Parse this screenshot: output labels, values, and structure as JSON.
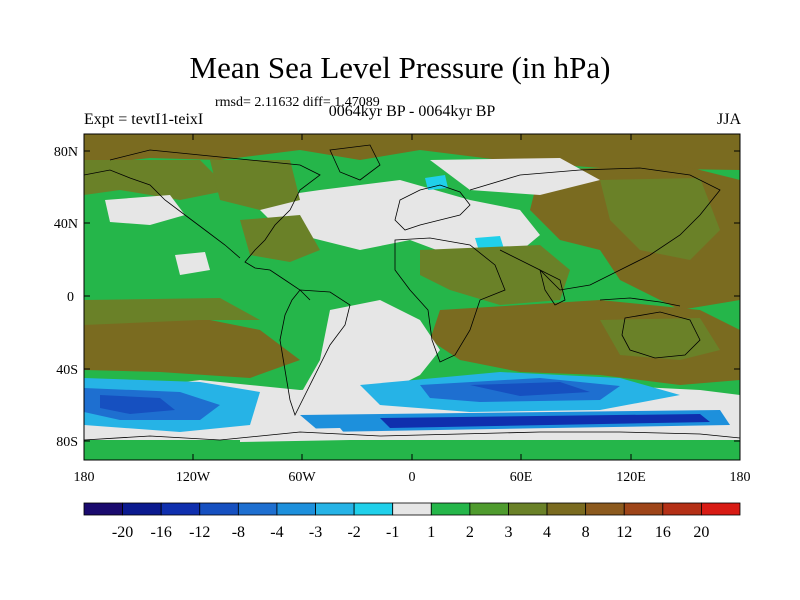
{
  "title": "Mean Sea Level Pressure (in hPa)",
  "stats": "rmsd= 2.11632 diff= 1.47089",
  "experiment": "Expt = tevtI1-teixI",
  "period": "0064kyr BP - 0064kyr BP",
  "season": "JJA",
  "map": {
    "lat_ticks": [
      "80N",
      "40N",
      "0",
      "40S",
      "80S"
    ],
    "lon_ticks": [
      "180",
      "120W",
      "60W",
      "0",
      "60E",
      "120E",
      "180"
    ]
  },
  "colorbar": {
    "labels": [
      "-20",
      "-16",
      "-12",
      "-8",
      "-4",
      "-3",
      "-2",
      "-1",
      "1",
      "2",
      "3",
      "4",
      "8",
      "12",
      "16",
      "20"
    ],
    "colors": [
      "#1a0a6e",
      "#0b1a8f",
      "#0f2fae",
      "#1650c0",
      "#1e6fd0",
      "#1d90dc",
      "#26b3e6",
      "#20d0ea",
      "#e6e6e6",
      "#25b64a",
      "#4f9b2e",
      "#6a8128",
      "#7a6b20",
      "#8c5a1e",
      "#9e4519",
      "#b43016",
      "#d81b14"
    ]
  },
  "colors": {
    "land_outline": "#000000",
    "background": "#ffffff"
  }
}
